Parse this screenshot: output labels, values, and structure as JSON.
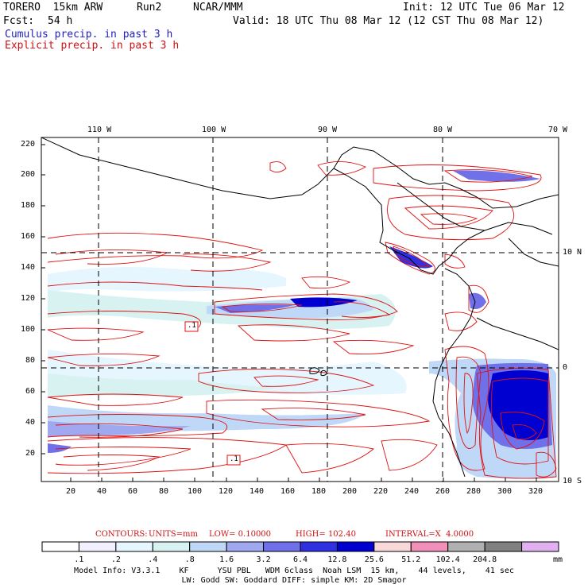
{
  "header": {
    "model": "TORERO  15km ARW",
    "run": "Run2",
    "org": "NCAR/MMM",
    "init": "Init: 12 UTC Tue 06 Mar 12",
    "fcst_label": "Fcst:",
    "fcst_value": "54 h",
    "valid": "Valid: 18 UTC Thu 08 Mar 12 (12 CST Thu 08 Mar 12)",
    "field1": "Cumulus precip. in past 3 h",
    "field2": "Explicit precip. in past 3 h"
  },
  "map": {
    "lon_labels": [
      "110 W",
      "100 W",
      "90 W",
      "80 W",
      "70 W"
    ],
    "lat_labels": [
      "10 N",
      "0",
      "10 S"
    ],
    "y_ticks": [
      "220",
      "200",
      "180",
      "160",
      "140",
      "120",
      "100",
      "80",
      "60",
      "40",
      "20"
    ],
    "x_ticks": [
      "20",
      "40",
      "60",
      "80",
      "100",
      "120",
      "140",
      "160",
      "180",
      "200",
      "220",
      "240",
      "260",
      "280",
      "300",
      "320"
    ],
    "box_labels": [
      ".1",
      ".1"
    ]
  },
  "contours_line": {
    "label": "CONTOURS:",
    "units": "UNITS=mm",
    "low": "LOW= 0.10000",
    "high": "HIGH= 102.40",
    "interval": "INTERVAL=X  4.0000"
  },
  "colorbar": {
    "labels": [
      ".1",
      ".2",
      ".4",
      ".8",
      "1.6",
      "3.2",
      "6.4",
      "12.8",
      "25.6",
      "51.2",
      "102.4",
      "204.8"
    ],
    "unit": "mm",
    "colors": [
      "#ffffff",
      "#f0f0ff",
      "#e6f6ff",
      "#d8f2f2",
      "#c0d8f8",
      "#a0a8f0",
      "#7070e8",
      "#3030e0",
      "#0000d0",
      "#f8d8d8",
      "#f090b8",
      "#b0b0b0",
      "#808080",
      "#e0b0f0"
    ]
  },
  "footer": {
    "line1": "Model Info: V3.3.1    KF      YSU PBL   WDM 6class  Noah LSM  15 km,    44 levels,    41 sec",
    "line2": "LW: Godd SW: Goddard DIFF: simple KM: 2D Smagor"
  }
}
